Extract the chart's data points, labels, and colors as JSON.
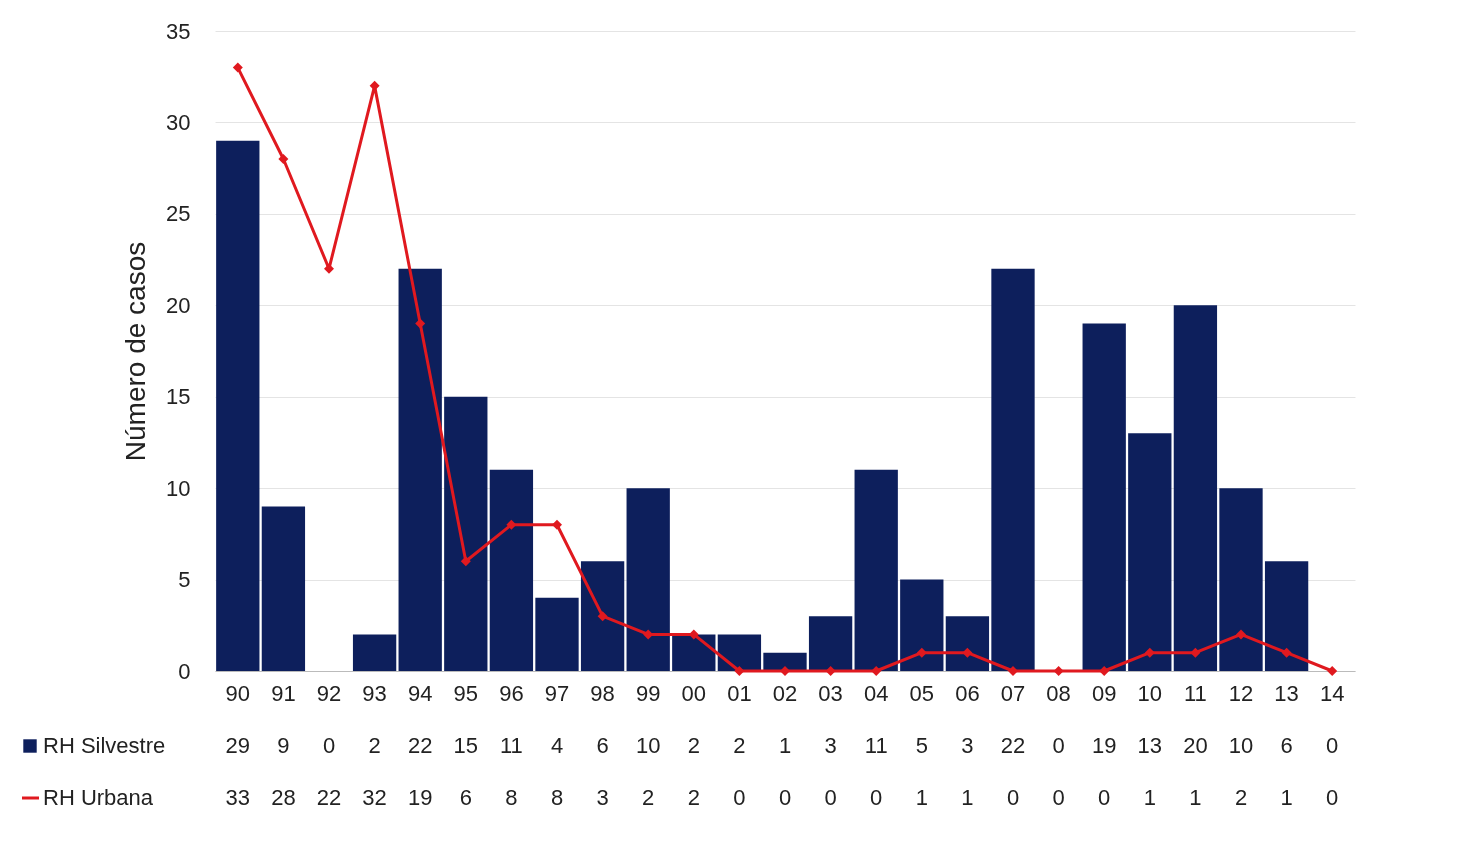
{
  "chart_data": {
    "type": "bar",
    "ylabel": "Número de casos",
    "categories": [
      "90",
      "91",
      "92",
      "93",
      "94",
      "95",
      "96",
      "97",
      "98",
      "99",
      "00",
      "01",
      "02",
      "03",
      "04",
      "05",
      "06",
      "07",
      "08",
      "09",
      "10",
      "11",
      "12",
      "13",
      "14"
    ],
    "series": [
      {
        "name": "RH Silvestre",
        "type": "bar",
        "color": "#0d1f5c",
        "values": [
          29,
          9,
          0,
          2,
          22,
          15,
          11,
          4,
          6,
          10,
          2,
          2,
          1,
          3,
          11,
          5,
          3,
          22,
          0,
          19,
          13,
          20,
          10,
          6,
          0
        ]
      },
      {
        "name": "RH Urbana",
        "type": "line",
        "color": "#e0191f",
        "values": [
          33,
          28,
          22,
          32,
          19,
          6,
          8,
          8,
          3,
          2,
          2,
          0,
          0,
          0,
          0,
          1,
          1,
          0,
          0,
          0,
          1,
          1,
          2,
          1,
          0
        ]
      }
    ],
    "ylim": [
      0,
      35
    ],
    "yticks": [
      0,
      5,
      10,
      15,
      20,
      25,
      30,
      35
    ],
    "grid": "y",
    "legend": "bottom left",
    "marker": "diamond",
    "line_style": "solid",
    "data_labels": true
  }
}
